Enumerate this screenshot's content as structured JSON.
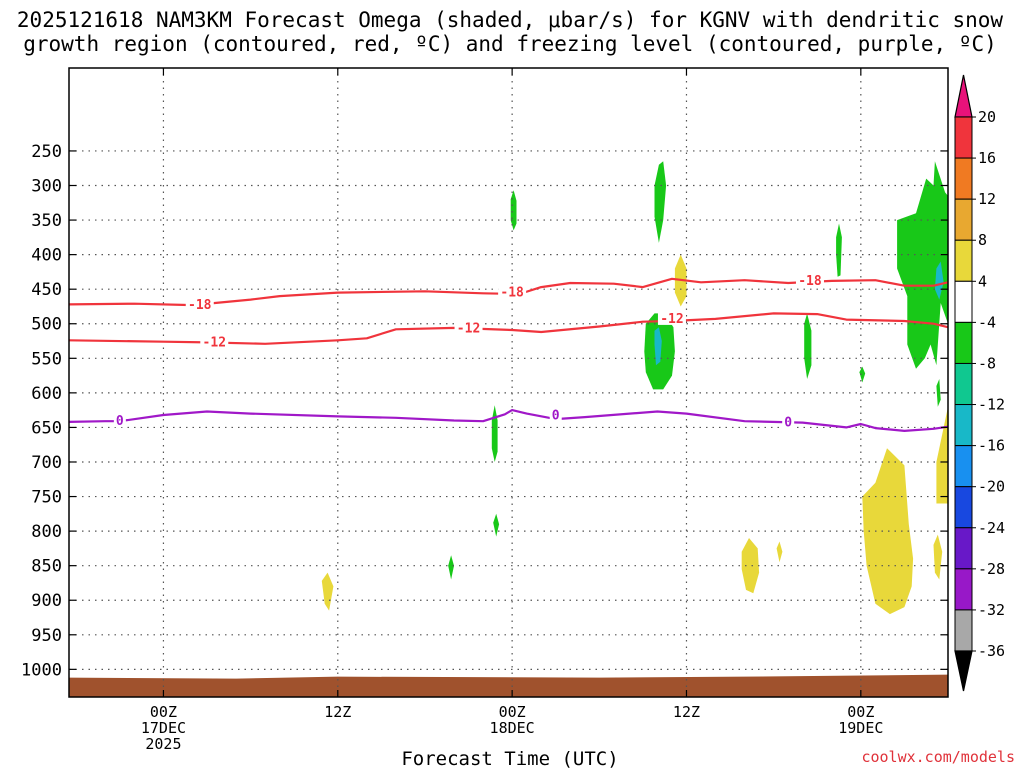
{
  "chart_data": {
    "type": "heatmap",
    "title_line1": "2025121618 NAM3KM Forecast Omega (shaded, μbar/s) for KGNV with dendritic snow",
    "title_line2": "growth region (contoured, red, ºC) and freezing level (contoured, purple, ºC)",
    "xlabel": "Forecast Time (UTC)",
    "credit": "coolwx.com/models",
    "x_range_hours": [
      -6.5,
      54
    ],
    "y_range_hPa": [
      1040,
      130
    ],
    "y_ticks": [
      250,
      300,
      350,
      400,
      450,
      500,
      550,
      600,
      650,
      700,
      750,
      800,
      850,
      900,
      950,
      1000
    ],
    "x_ticks": [
      {
        "hour": 0,
        "line1": "00Z",
        "line2": "17DEC",
        "line3": "2025"
      },
      {
        "hour": 12,
        "line1": "12Z",
        "line2": "",
        "line3": ""
      },
      {
        "hour": 24,
        "line1": "00Z",
        "line2": "18DEC",
        "line3": ""
      },
      {
        "hour": 36,
        "line1": "12Z",
        "line2": "",
        "line3": ""
      },
      {
        "hour": 48,
        "line1": "00Z",
        "line2": "19DEC",
        "line3": ""
      }
    ],
    "colorbar": [
      {
        "label": "20",
        "color": "#e8127a"
      },
      {
        "label": "16",
        "color": "#f0343c"
      },
      {
        "label": "12",
        "color": "#f07a22"
      },
      {
        "label": "8",
        "color": "#e8a830"
      },
      {
        "label": "4",
        "color": "#e8d83a"
      },
      {
        "label": "-4",
        "color": "#ffffff"
      },
      {
        "label": "-8",
        "color": "#18c818"
      },
      {
        "label": "-12",
        "color": "#10c890"
      },
      {
        "label": "-16",
        "color": "#18b8c8"
      },
      {
        "label": "-20",
        "color": "#1890f0"
      },
      {
        "label": "-24",
        "color": "#1848e0"
      },
      {
        "label": "-28",
        "color": "#6818c8"
      },
      {
        "label": "-32",
        "color": "#9818c8"
      },
      {
        "label": "-36",
        "color": "#a8a8a8"
      }
    ],
    "cb_bottom_color": "#000000",
    "ground_color": "#a0522d",
    "contours": [
      {
        "name": "dgz-minus18",
        "color": "#f0343c",
        "level_label": "-18",
        "points": [
          [
            -6.5,
            472
          ],
          [
            -2,
            471
          ],
          [
            2,
            473
          ],
          [
            6,
            465
          ],
          [
            8,
            460
          ],
          [
            12,
            455
          ],
          [
            18,
            453
          ],
          [
            22,
            456
          ],
          [
            24.5,
            457
          ],
          [
            26,
            447
          ],
          [
            28,
            441
          ],
          [
            31,
            442
          ],
          [
            33,
            447
          ],
          [
            35,
            435
          ],
          [
            37,
            440
          ],
          [
            40,
            437
          ],
          [
            43,
            441
          ],
          [
            46,
            438
          ],
          [
            49,
            437
          ],
          [
            51,
            445
          ],
          [
            53,
            445
          ],
          [
            54,
            440
          ]
        ],
        "label_positions": [
          [
            2.5,
            473
          ],
          [
            24,
            455
          ],
          [
            44.5,
            438
          ]
        ]
      },
      {
        "name": "dgz-minus12",
        "color": "#f0343c",
        "level_label": "-12",
        "points": [
          [
            -6.5,
            524
          ],
          [
            0,
            526
          ],
          [
            3,
            527
          ],
          [
            7,
            529
          ],
          [
            12,
            524
          ],
          [
            14,
            521
          ],
          [
            16,
            508
          ],
          [
            20,
            506
          ],
          [
            24,
            509
          ],
          [
            26,
            512
          ],
          [
            30,
            504
          ],
          [
            33,
            497
          ],
          [
            35,
            496
          ],
          [
            38,
            493
          ],
          [
            42,
            485
          ],
          [
            45,
            486
          ],
          [
            47,
            494
          ],
          [
            51,
            496
          ],
          [
            53,
            500
          ],
          [
            54,
            505
          ]
        ],
        "label_positions": [
          [
            3.5,
            527
          ],
          [
            21,
            507
          ],
          [
            35,
            493
          ]
        ]
      },
      {
        "name": "freezing-level-0",
        "color": "#a018c8",
        "level_label": "0",
        "points": [
          [
            -6.5,
            642
          ],
          [
            -4,
            641
          ],
          [
            -3,
            641
          ],
          [
            0,
            632
          ],
          [
            3,
            627
          ],
          [
            6,
            630
          ],
          [
            12,
            634
          ],
          [
            16,
            636
          ],
          [
            20,
            640
          ],
          [
            22,
            641
          ],
          [
            23.5,
            631
          ],
          [
            24,
            625
          ],
          [
            25,
            630
          ],
          [
            27,
            638
          ],
          [
            29,
            635
          ],
          [
            34,
            627
          ],
          [
            36,
            630
          ],
          [
            40,
            641
          ],
          [
            44,
            643
          ],
          [
            47,
            650
          ],
          [
            48,
            645
          ],
          [
            49,
            651
          ],
          [
            51,
            655
          ],
          [
            53,
            652
          ],
          [
            54,
            649
          ]
        ],
        "label_positions": [
          [
            -3,
            641
          ],
          [
            27,
            633
          ],
          [
            43,
            643
          ]
        ]
      }
    ],
    "regions": [
      {
        "name": "upward-omega-1",
        "fill": "#18c818",
        "points": [
          [
            23.9,
            320
          ],
          [
            24.1,
            307
          ],
          [
            24.3,
            322
          ],
          [
            24.3,
            355
          ],
          [
            24.1,
            365
          ],
          [
            23.9,
            350
          ]
        ]
      },
      {
        "name": "upward-omega-2",
        "fill": "#18c818",
        "points": [
          [
            33.8,
            300
          ],
          [
            34.1,
            270
          ],
          [
            34.4,
            265
          ],
          [
            34.6,
            300
          ],
          [
            34.4,
            350
          ],
          [
            34.1,
            383
          ],
          [
            33.8,
            345
          ]
        ]
      },
      {
        "name": "upward-omega-3",
        "fill": "#18c818",
        "points": [
          [
            33.2,
            500
          ],
          [
            33.8,
            485
          ],
          [
            34.5,
            485
          ],
          [
            35.1,
            505
          ],
          [
            35.2,
            540
          ],
          [
            35.0,
            575
          ],
          [
            34.4,
            595
          ],
          [
            33.7,
            595
          ],
          [
            33.2,
            570
          ],
          [
            33.1,
            540
          ]
        ]
      },
      {
        "name": "upward-omega-3-core",
        "fill": "#18b8c8",
        "points": [
          [
            33.8,
            510
          ],
          [
            34.1,
            505
          ],
          [
            34.3,
            525
          ],
          [
            34.2,
            555
          ],
          [
            33.9,
            560
          ],
          [
            33.8,
            530
          ]
        ]
      },
      {
        "name": "upward-omega-4",
        "fill": "#18c818",
        "points": [
          [
            22.6,
            640
          ],
          [
            22.8,
            618
          ],
          [
            23.0,
            640
          ],
          [
            23.0,
            685
          ],
          [
            22.8,
            700
          ],
          [
            22.6,
            680
          ]
        ]
      },
      {
        "name": "upward-omega-5",
        "fill": "#18c818",
        "points": [
          [
            22.7,
            788
          ],
          [
            22.9,
            775
          ],
          [
            23.1,
            790
          ],
          [
            22.9,
            808
          ]
        ]
      },
      {
        "name": "upward-omega-6",
        "fill": "#18c818",
        "points": [
          [
            19.6,
            850
          ],
          [
            19.8,
            835
          ],
          [
            20.0,
            850
          ],
          [
            19.8,
            870
          ]
        ]
      },
      {
        "name": "upward-omega-7",
        "fill": "#18c818",
        "points": [
          [
            44.1,
            500
          ],
          [
            44.3,
            485
          ],
          [
            44.6,
            510
          ],
          [
            44.6,
            560
          ],
          [
            44.3,
            580
          ],
          [
            44.1,
            550
          ]
        ]
      },
      {
        "name": "upward-omega-8",
        "fill": "#18c818",
        "points": [
          [
            46.3,
            375
          ],
          [
            46.5,
            355
          ],
          [
            46.7,
            375
          ],
          [
            46.6,
            430
          ],
          [
            46.4,
            432
          ],
          [
            46.3,
            400
          ]
        ]
      },
      {
        "name": "upward-omega-9",
        "fill": "#18c818",
        "points": [
          [
            47.9,
            570
          ],
          [
            48.1,
            562
          ],
          [
            48.3,
            572
          ],
          [
            48.1,
            585
          ]
        ]
      },
      {
        "name": "upward-omega-10",
        "fill": "#18c818",
        "points": [
          [
            50.5,
            350
          ],
          [
            51.8,
            340
          ],
          [
            52.5,
            290
          ],
          [
            53.0,
            300
          ],
          [
            53.1,
            265
          ],
          [
            53.8,
            310
          ],
          [
            54,
            315
          ],
          [
            54,
            500
          ],
          [
            53.5,
            470
          ],
          [
            53.2,
            560
          ],
          [
            52.8,
            530
          ],
          [
            52.4,
            550
          ],
          [
            51.8,
            565
          ],
          [
            51.2,
            530
          ],
          [
            51.2,
            460
          ],
          [
            50.5,
            420
          ]
        ]
      },
      {
        "name": "upward-omega-10-core",
        "fill": "#18b8c8",
        "points": [
          [
            53.2,
            420
          ],
          [
            53.5,
            410
          ],
          [
            53.7,
            440
          ],
          [
            53.4,
            465
          ],
          [
            53.1,
            450
          ]
        ]
      },
      {
        "name": "upward-omega-11",
        "fill": "#18c818",
        "points": [
          [
            53.2,
            590
          ],
          [
            53.4,
            580
          ],
          [
            53.5,
            610
          ],
          [
            53.3,
            620
          ]
        ]
      },
      {
        "name": "downward-omega-1",
        "fill": "#e8d83a",
        "points": [
          [
            10.9,
            872
          ],
          [
            11.3,
            860
          ],
          [
            11.7,
            880
          ],
          [
            11.4,
            915
          ],
          [
            11.1,
            905
          ]
        ]
      },
      {
        "name": "downward-omega-2",
        "fill": "#e8d83a",
        "points": [
          [
            35.2,
            420
          ],
          [
            35.6,
            400
          ],
          [
            36.0,
            420
          ],
          [
            36.0,
            460
          ],
          [
            35.6,
            475
          ],
          [
            35.2,
            455
          ]
        ]
      },
      {
        "name": "downward-omega-3",
        "fill": "#e8d83a",
        "points": [
          [
            39.8,
            830
          ],
          [
            40.3,
            810
          ],
          [
            40.9,
            825
          ],
          [
            41.0,
            860
          ],
          [
            40.6,
            890
          ],
          [
            40.1,
            885
          ],
          [
            39.8,
            855
          ]
        ]
      },
      {
        "name": "downward-omega-4",
        "fill": "#e8d83a",
        "points": [
          [
            42.2,
            825
          ],
          [
            42.4,
            815
          ],
          [
            42.6,
            830
          ],
          [
            42.4,
            845
          ]
        ]
      },
      {
        "name": "downward-omega-5",
        "fill": "#e8d83a",
        "points": [
          [
            48.1,
            750
          ],
          [
            49.0,
            730
          ],
          [
            49.8,
            680
          ],
          [
            51.0,
            705
          ],
          [
            51.3,
            790
          ],
          [
            51.6,
            840
          ],
          [
            51.5,
            880
          ],
          [
            51.0,
            910
          ],
          [
            50.0,
            920
          ],
          [
            49.0,
            905
          ],
          [
            48.4,
            850
          ],
          [
            48.2,
            800
          ]
        ]
      },
      {
        "name": "downward-omega-6",
        "fill": "#e8d83a",
        "points": [
          [
            53.0,
            820
          ],
          [
            53.3,
            805
          ],
          [
            53.6,
            830
          ],
          [
            53.4,
            870
          ],
          [
            53.1,
            860
          ]
        ]
      },
      {
        "name": "downward-omega-7",
        "fill": "#e8d83a",
        "points": [
          [
            54,
            620
          ],
          [
            53.2,
            700
          ],
          [
            53.2,
            760
          ],
          [
            54,
            760
          ]
        ]
      }
    ]
  }
}
